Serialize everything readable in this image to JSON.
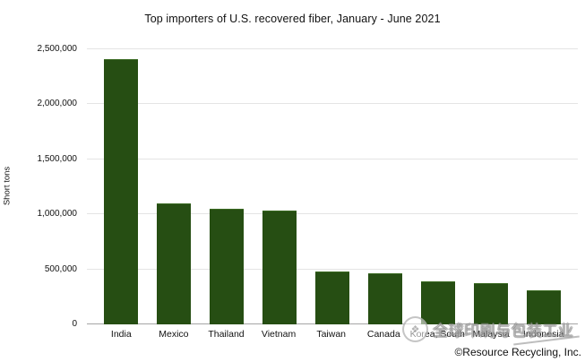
{
  "chart_data": {
    "type": "bar",
    "title": "Top importers of U.S. recovered fiber, January - June 2021",
    "xlabel": "",
    "ylabel": "Short tons",
    "categories": [
      "India",
      "Mexico",
      "Thailand",
      "Vietnam",
      "Taiwan",
      "Canada",
      "Korea, South",
      "Malaysia",
      "Indonesia"
    ],
    "values": [
      2400000,
      1090000,
      1040000,
      1025000,
      470000,
      460000,
      385000,
      365000,
      300000
    ],
    "ylim": [
      0,
      2500000
    ],
    "ytick_labels": [
      "0",
      "500,000",
      "1,000,000",
      "1,500,000",
      "2,000,000",
      "2,500,000"
    ],
    "grid": true,
    "legend_position": "none",
    "bar_color": "#264e13"
  },
  "watermark": {
    "logo_icon": "circular-badge-icon",
    "text": "全球印刷与包装工业"
  },
  "credit": "©Resource Recycling, Inc."
}
